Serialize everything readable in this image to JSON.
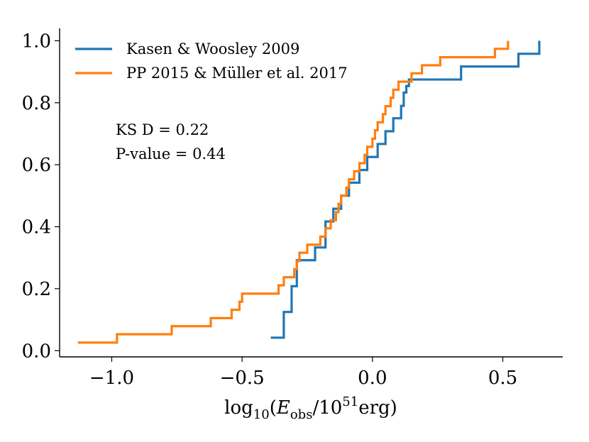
{
  "chart_data": {
    "type": "line",
    "step": true,
    "xlabel_parts": {
      "pre": "log",
      "sub": "10",
      "open": "(",
      "var": "E",
      "varsub": "obs",
      "slash": "/10",
      "sup": "51",
      "unit": "erg",
      "close": ")"
    },
    "ylabel": "",
    "xlim": [
      -1.2,
      0.73
    ],
    "ylim": [
      -0.02,
      1.04
    ],
    "xticks": [
      -1.0,
      -0.5,
      0.0,
      0.5
    ],
    "xtick_labels": [
      "−1.0",
      "−0.5",
      "0.0",
      "0.5"
    ],
    "yticks": [
      0.0,
      0.2,
      0.4,
      0.6,
      0.8,
      1.0
    ],
    "ytick_labels": [
      "0.0",
      "0.2",
      "0.4",
      "0.6",
      "0.8",
      "1.0"
    ],
    "legend_position": "top-left",
    "annotations": [
      "KS D = 0.22",
      "P-value = 0.44"
    ],
    "series": [
      {
        "name": "Kasen & Woosley 2009",
        "color": "#1f77b4",
        "x": [
          -0.39,
          -0.34,
          -0.34,
          -0.31,
          -0.29,
          -0.22,
          -0.18,
          -0.15,
          -0.12,
          -0.09,
          -0.05,
          -0.02,
          0.02,
          0.05,
          0.08,
          0.11,
          0.12,
          0.13,
          0.14,
          0.15,
          0.16,
          0.2,
          0.34,
          0.56,
          0.64
        ],
        "y": [
          0.042,
          0.083,
          0.125,
          0.208,
          0.292,
          0.333,
          0.417,
          0.458,
          0.5,
          0.542,
          0.583,
          0.625,
          0.667,
          0.708,
          0.75,
          0.79,
          0.833,
          0.854,
          0.875,
          0.875,
          0.875,
          0.875,
          0.917,
          0.958,
          1.0
        ]
      },
      {
        "name": "PP 2015 & Müller et al. 2017",
        "color": "#ff7f0e",
        "x": [
          -1.13,
          -0.98,
          -0.77,
          -0.62,
          -0.54,
          -0.51,
          -0.5,
          -0.36,
          -0.34,
          -0.3,
          -0.29,
          -0.28,
          -0.25,
          -0.2,
          -0.18,
          -0.16,
          -0.14,
          -0.13,
          -0.12,
          -0.1,
          -0.09,
          -0.07,
          -0.05,
          -0.03,
          -0.02,
          0.0,
          0.01,
          0.02,
          0.04,
          0.05,
          0.07,
          0.08,
          0.09,
          0.1,
          0.15,
          0.19,
          0.26,
          0.47,
          0.52
        ],
        "y": [
          0.026,
          0.053,
          0.079,
          0.105,
          0.132,
          0.158,
          0.184,
          0.211,
          0.237,
          0.263,
          0.289,
          0.316,
          0.342,
          0.368,
          0.395,
          0.421,
          0.447,
          0.474,
          0.5,
          0.526,
          0.553,
          0.579,
          0.605,
          0.632,
          0.658,
          0.684,
          0.711,
          0.737,
          0.763,
          0.789,
          0.816,
          0.842,
          0.842,
          0.868,
          0.895,
          0.921,
          0.947,
          0.974,
          1.0
        ]
      }
    ]
  }
}
